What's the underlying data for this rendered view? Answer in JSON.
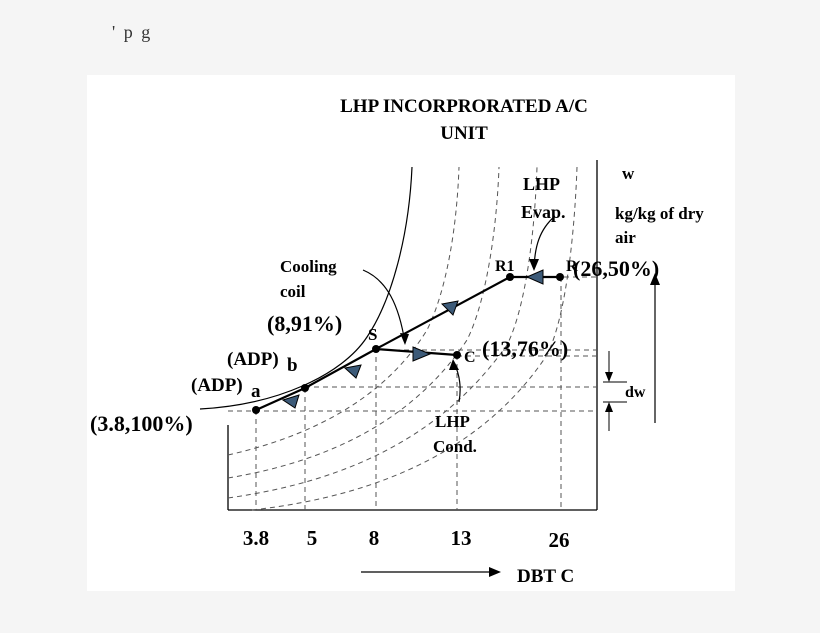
{
  "top_fragment": "' p        g",
  "title_line1": "LHP INCORPRORATED A/C",
  "title_line2": "UNIT",
  "labels": {
    "w": "w",
    "humidity_unit_line1": "kg/kg of dry",
    "humidity_unit_line2": "air",
    "lhp_evap_line1": "LHP",
    "lhp_evap_line2": "Evap.",
    "cooling_coil_line1": "Cooling",
    "cooling_coil_line2": "coil",
    "lhp_cond_line1": "LHP",
    "lhp_cond_line2": "Cond.",
    "dw": "dw",
    "dbt": "DBT  C"
  },
  "points": {
    "R_label": "R",
    "R_value": "(26,50%)",
    "R1_label": "R1",
    "S_label": "S",
    "S_value": "(8,91%)",
    "C_label": "C",
    "C_value": "(13,76%)",
    "b_prefix": "(ADP)",
    "b_label": "b",
    "a_prefix": "(ADP)",
    "a_label": "a",
    "a_value": "(3.8,100%)"
  },
  "x_ticks": [
    "3.8",
    "5",
    "8",
    "13",
    "26"
  ],
  "colors": {
    "line": "#000000",
    "arrow_fill": "#3c5a78",
    "dashed": "#555555"
  }
}
